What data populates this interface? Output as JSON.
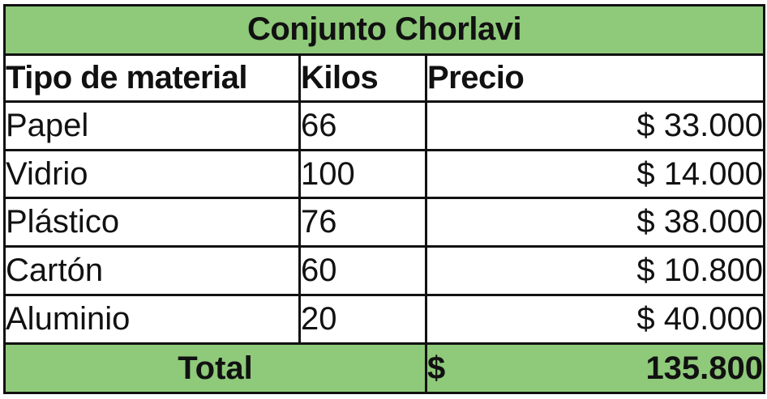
{
  "table": {
    "title": "Conjunto Chorlavi",
    "headers": {
      "material": "Tipo de material",
      "kilos": "Kilos",
      "precio": "Precio"
    },
    "rows": [
      {
        "material": "Papel",
        "kilos": "66",
        "precio": "$ 33.000"
      },
      {
        "material": "Vidrio",
        "kilos": "100",
        "precio": "$ 14.000"
      },
      {
        "material": "Plástico",
        "kilos": "76",
        "precio": "$ 38.000"
      },
      {
        "material": "Cartón",
        "kilos": "60",
        "precio": "$ 10.800"
      },
      {
        "material": "Aluminio",
        "kilos": "20",
        "precio": "$ 40.000"
      }
    ],
    "total": {
      "label": "Total",
      "currency": "$",
      "value": "135.800"
    }
  },
  "colors": {
    "header_fill": "#8fc97a",
    "border": "#111111"
  }
}
